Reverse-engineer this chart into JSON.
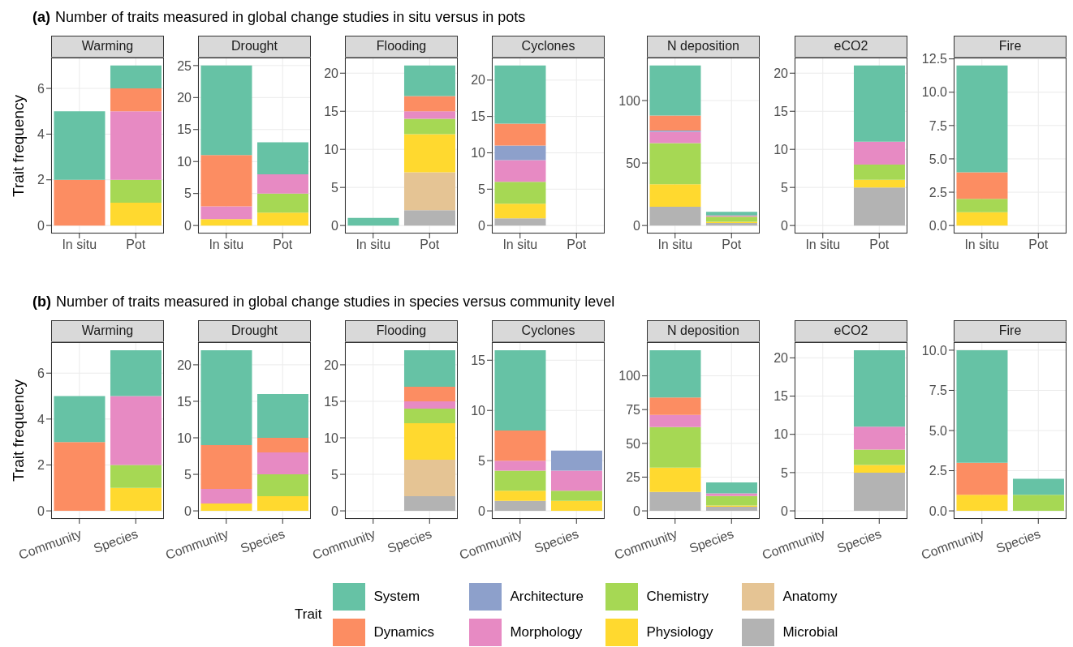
{
  "chart_data": [
    {
      "type": "bar",
      "stacked": true,
      "grid": true,
      "title": "Warming",
      "ylabel": "Trait frequency",
      "annotations": [
        "(a)",
        "Number of traits measured in global change studies in situ versus in pots"
      ],
      "categories": [
        "In situ",
        "Pot"
      ],
      "ylim": [
        -0.35,
        7.35
      ],
      "yticks": [
        0,
        2,
        4,
        6
      ],
      "series": [
        {
          "color": "#b3b3b3",
          "values": [
            null,
            null
          ]
        },
        {
          "color": "#e5c494",
          "values": [
            null,
            null
          ]
        },
        {
          "color": "#ffd92f",
          "values": [
            null,
            1
          ]
        },
        {
          "color": "#a6d854",
          "values": [
            null,
            1
          ]
        },
        {
          "color": "#e78ac3",
          "values": [
            null,
            3
          ]
        },
        {
          "color": "#8da0cb",
          "values": [
            null,
            null
          ]
        },
        {
          "color": "#fc8d62",
          "values": [
            2,
            1
          ]
        },
        {
          "color": "#66c2a5",
          "values": [
            3,
            1
          ]
        }
      ]
    },
    {
      "type": "bar",
      "stacked": true,
      "grid": true,
      "title": "Drought",
      "categories": [
        "In situ",
        "Pot"
      ],
      "ylim": [
        -1.25,
        26.25
      ],
      "yticks": [
        0,
        5,
        10,
        15,
        20,
        25
      ],
      "series": [
        {
          "color": "#b3b3b3",
          "values": [
            null,
            null
          ]
        },
        {
          "color": "#e5c494",
          "values": [
            null,
            null
          ]
        },
        {
          "color": "#ffd92f",
          "values": [
            1,
            2
          ]
        },
        {
          "color": "#a6d854",
          "values": [
            null,
            3
          ]
        },
        {
          "color": "#e78ac3",
          "values": [
            2,
            3
          ]
        },
        {
          "color": "#8da0cb",
          "values": [
            null,
            null
          ]
        },
        {
          "color": "#fc8d62",
          "values": [
            8,
            null
          ]
        },
        {
          "color": "#66c2a5",
          "values": [
            14,
            5
          ]
        }
      ]
    },
    {
      "type": "bar",
      "stacked": true,
      "grid": true,
      "title": "Flooding",
      "categories": [
        "In situ",
        "Pot"
      ],
      "ylim": [
        -1.05,
        22.05
      ],
      "yticks": [
        0,
        5,
        10,
        15,
        20
      ],
      "series": [
        {
          "color": "#b3b3b3",
          "values": [
            null,
            2
          ]
        },
        {
          "color": "#e5c494",
          "values": [
            null,
            5
          ]
        },
        {
          "color": "#ffd92f",
          "values": [
            null,
            5
          ]
        },
        {
          "color": "#a6d854",
          "values": [
            null,
            2
          ]
        },
        {
          "color": "#e78ac3",
          "values": [
            null,
            1
          ]
        },
        {
          "color": "#8da0cb",
          "values": [
            null,
            null
          ]
        },
        {
          "color": "#fc8d62",
          "values": [
            null,
            2
          ]
        },
        {
          "color": "#66c2a5",
          "values": [
            1,
            4
          ]
        }
      ]
    },
    {
      "type": "bar",
      "stacked": true,
      "grid": true,
      "title": "Cyclones",
      "categories": [
        "In situ",
        "Pot"
      ],
      "ylim": [
        -1.1,
        23.1
      ],
      "yticks": [
        0,
        5,
        10,
        15,
        20
      ],
      "series": [
        {
          "color": "#b3b3b3",
          "values": [
            1,
            null
          ]
        },
        {
          "color": "#e5c494",
          "values": [
            null,
            null
          ]
        },
        {
          "color": "#ffd92f",
          "values": [
            2,
            null
          ]
        },
        {
          "color": "#a6d854",
          "values": [
            3,
            null
          ]
        },
        {
          "color": "#e78ac3",
          "values": [
            3,
            null
          ]
        },
        {
          "color": "#8da0cb",
          "values": [
            2,
            null
          ]
        },
        {
          "color": "#fc8d62",
          "values": [
            3,
            null
          ]
        },
        {
          "color": "#66c2a5",
          "values": [
            8,
            null
          ]
        }
      ]
    },
    {
      "type": "bar",
      "stacked": true,
      "grid": true,
      "title": "N deposition",
      "categories": [
        "In situ",
        "Pot"
      ],
      "ylim": [
        -6.4,
        134.4
      ],
      "yticks": [
        0,
        50,
        100
      ],
      "series": [
        {
          "color": "#b3b3b3",
          "values": [
            15,
            2
          ]
        },
        {
          "color": "#e5c494",
          "values": [
            null,
            null
          ]
        },
        {
          "color": "#ffd92f",
          "values": [
            18,
            1
          ]
        },
        {
          "color": "#a6d854",
          "values": [
            33,
            4
          ]
        },
        {
          "color": "#e78ac3",
          "values": [
            9,
            1
          ]
        },
        {
          "color": "#8da0cb",
          "values": [
            1,
            null
          ]
        },
        {
          "color": "#fc8d62",
          "values": [
            12,
            null
          ]
        },
        {
          "color": "#66c2a5",
          "values": [
            40,
            3
          ]
        }
      ]
    },
    {
      "type": "bar",
      "stacked": true,
      "grid": true,
      "title": "eCO2",
      "categories": [
        "In situ",
        "Pot"
      ],
      "ylim": [
        -1.05,
        22.05
      ],
      "yticks": [
        0,
        5,
        10,
        15,
        20
      ],
      "series": [
        {
          "color": "#b3b3b3",
          "values": [
            null,
            5
          ]
        },
        {
          "color": "#e5c494",
          "values": [
            null,
            null
          ]
        },
        {
          "color": "#ffd92f",
          "values": [
            null,
            1
          ]
        },
        {
          "color": "#a6d854",
          "values": [
            null,
            2
          ]
        },
        {
          "color": "#e78ac3",
          "values": [
            null,
            3
          ]
        },
        {
          "color": "#8da0cb",
          "values": [
            null,
            null
          ]
        },
        {
          "color": "#fc8d62",
          "values": [
            null,
            null
          ]
        },
        {
          "color": "#66c2a5",
          "values": [
            null,
            10
          ]
        }
      ]
    },
    {
      "type": "bar",
      "stacked": true,
      "grid": true,
      "title": "Fire",
      "categories": [
        "In situ",
        "Pot"
      ],
      "ylim": [
        -0.6,
        12.6
      ],
      "yticks": [
        {
          "value": 0,
          "label": "0.0"
        },
        2.5,
        {
          "value": 5,
          "label": "5.0"
        },
        7.5,
        {
          "value": 10,
          "label": "10.0"
        },
        12.5
      ],
      "series": [
        {
          "color": "#b3b3b3",
          "values": [
            null,
            null
          ]
        },
        {
          "color": "#e5c494",
          "values": [
            null,
            null
          ]
        },
        {
          "color": "#ffd92f",
          "values": [
            1,
            null
          ]
        },
        {
          "color": "#a6d854",
          "values": [
            1,
            null
          ]
        },
        {
          "color": "#e78ac3",
          "values": [
            null,
            null
          ]
        },
        {
          "color": "#8da0cb",
          "values": [
            null,
            null
          ]
        },
        {
          "color": "#fc8d62",
          "values": [
            2,
            null
          ]
        },
        {
          "color": "#66c2a5",
          "values": [
            8,
            null
          ]
        }
      ]
    },
    {
      "type": "bar",
      "stacked": true,
      "grid": true,
      "title": "Warming",
      "ylabel": "Trait frequency",
      "annotations": [
        "(b)",
        "Number of traits measured in global change studies in species versus community level"
      ],
      "categories": [
        "Community",
        "Species"
      ],
      "ylim": [
        -0.35,
        7.35
      ],
      "yticks": [
        0,
        2,
        4,
        6
      ],
      "series": [
        {
          "color": "#b3b3b3",
          "values": [
            null,
            null
          ]
        },
        {
          "color": "#e5c494",
          "values": [
            null,
            null
          ]
        },
        {
          "color": "#ffd92f",
          "values": [
            null,
            1
          ]
        },
        {
          "color": "#a6d854",
          "values": [
            null,
            1
          ]
        },
        {
          "color": "#e78ac3",
          "values": [
            null,
            3
          ]
        },
        {
          "color": "#8da0cb",
          "values": [
            null,
            null
          ]
        },
        {
          "color": "#fc8d62",
          "values": [
            3,
            null
          ]
        },
        {
          "color": "#66c2a5",
          "values": [
            2,
            2
          ]
        }
      ]
    },
    {
      "type": "bar",
      "stacked": true,
      "grid": true,
      "title": "Drought",
      "categories": [
        "Community",
        "Species"
      ],
      "ylim": [
        -1.1,
        23.1
      ],
      "yticks": [
        0,
        5,
        10,
        15,
        20
      ],
      "series": [
        {
          "color": "#b3b3b3",
          "values": [
            null,
            null
          ]
        },
        {
          "color": "#e5c494",
          "values": [
            null,
            null
          ]
        },
        {
          "color": "#ffd92f",
          "values": [
            1,
            2
          ]
        },
        {
          "color": "#a6d854",
          "values": [
            null,
            3
          ]
        },
        {
          "color": "#e78ac3",
          "values": [
            2,
            3
          ]
        },
        {
          "color": "#8da0cb",
          "values": [
            null,
            null
          ]
        },
        {
          "color": "#fc8d62",
          "values": [
            6,
            2
          ]
        },
        {
          "color": "#66c2a5",
          "values": [
            13,
            6
          ]
        }
      ]
    },
    {
      "type": "bar",
      "stacked": true,
      "grid": true,
      "title": "Flooding",
      "categories": [
        "Community",
        "Species"
      ],
      "ylim": [
        -1.1,
        23.1
      ],
      "yticks": [
        0,
        5,
        10,
        15,
        20
      ],
      "series": [
        {
          "color": "#b3b3b3",
          "values": [
            null,
            2
          ]
        },
        {
          "color": "#e5c494",
          "values": [
            null,
            5
          ]
        },
        {
          "color": "#ffd92f",
          "values": [
            null,
            5
          ]
        },
        {
          "color": "#a6d854",
          "values": [
            null,
            2
          ]
        },
        {
          "color": "#e78ac3",
          "values": [
            null,
            1
          ]
        },
        {
          "color": "#8da0cb",
          "values": [
            null,
            null
          ]
        },
        {
          "color": "#fc8d62",
          "values": [
            null,
            2
          ]
        },
        {
          "color": "#66c2a5",
          "values": [
            null,
            5
          ]
        }
      ]
    },
    {
      "type": "bar",
      "stacked": true,
      "grid": true,
      "title": "Cyclones",
      "categories": [
        "Community",
        "Species"
      ],
      "ylim": [
        -0.8,
        16.8
      ],
      "yticks": [
        0,
        5,
        10,
        15
      ],
      "series": [
        {
          "color": "#b3b3b3",
          "values": [
            1,
            null
          ]
        },
        {
          "color": "#e5c494",
          "values": [
            null,
            null
          ]
        },
        {
          "color": "#ffd92f",
          "values": [
            1,
            1
          ]
        },
        {
          "color": "#a6d854",
          "values": [
            2,
            1
          ]
        },
        {
          "color": "#e78ac3",
          "values": [
            1,
            2
          ]
        },
        {
          "color": "#8da0cb",
          "values": [
            null,
            2
          ]
        },
        {
          "color": "#fc8d62",
          "values": [
            3,
            null
          ]
        },
        {
          "color": "#66c2a5",
          "values": [
            8,
            null
          ]
        }
      ]
    },
    {
      "type": "bar",
      "stacked": true,
      "grid": true,
      "title": "N deposition",
      "categories": [
        "Community",
        "Species"
      ],
      "ylim": [
        -5.95,
        124.95
      ],
      "yticks": [
        0,
        25,
        50,
        75,
        100
      ],
      "series": [
        {
          "color": "#b3b3b3",
          "values": [
            14,
            3
          ]
        },
        {
          "color": "#e5c494",
          "values": [
            null,
            null
          ]
        },
        {
          "color": "#ffd92f",
          "values": [
            18,
            1
          ]
        },
        {
          "color": "#a6d854",
          "values": [
            30,
            7
          ]
        },
        {
          "color": "#e78ac3",
          "values": [
            9,
            2
          ]
        },
        {
          "color": "#8da0cb",
          "values": [
            null,
            null
          ]
        },
        {
          "color": "#fc8d62",
          "values": [
            13,
            null
          ]
        },
        {
          "color": "#66c2a5",
          "values": [
            35,
            8
          ]
        }
      ]
    },
    {
      "type": "bar",
      "stacked": true,
      "grid": true,
      "title": "eCO2",
      "categories": [
        "Community",
        "Species"
      ],
      "ylim": [
        -1.05,
        22.05
      ],
      "yticks": [
        0,
        5,
        10,
        15,
        20
      ],
      "series": [
        {
          "color": "#b3b3b3",
          "values": [
            null,
            5
          ]
        },
        {
          "color": "#e5c494",
          "values": [
            null,
            null
          ]
        },
        {
          "color": "#ffd92f",
          "values": [
            null,
            1
          ]
        },
        {
          "color": "#a6d854",
          "values": [
            null,
            2
          ]
        },
        {
          "color": "#e78ac3",
          "values": [
            null,
            3
          ]
        },
        {
          "color": "#8da0cb",
          "values": [
            null,
            null
          ]
        },
        {
          "color": "#fc8d62",
          "values": [
            null,
            null
          ]
        },
        {
          "color": "#66c2a5",
          "values": [
            null,
            10
          ]
        }
      ]
    },
    {
      "type": "bar",
      "stacked": true,
      "grid": true,
      "title": "Fire",
      "legend": "bottom",
      "legend_title": "Trait",
      "categories": [
        "Community",
        "Species"
      ],
      "ylim": [
        -0.5,
        10.5
      ],
      "yticks": [
        {
          "value": 0,
          "label": "0.0"
        },
        2.5,
        {
          "value": 5,
          "label": "5.0"
        },
        7.5,
        {
          "value": 10,
          "label": "10.0"
        }
      ],
      "series": [
        {
          "name": "Microbial",
          "color": "#b3b3b3",
          "values": [
            null,
            null
          ]
        },
        {
          "name": "Anatomy",
          "color": "#e5c494",
          "values": [
            null,
            null
          ]
        },
        {
          "name": "Physiology",
          "color": "#ffd92f",
          "values": [
            1,
            null
          ]
        },
        {
          "name": "Chemistry",
          "color": "#a6d854",
          "values": [
            null,
            1
          ]
        },
        {
          "name": "Morphology",
          "color": "#e78ac3",
          "values": [
            null,
            null
          ]
        },
        {
          "name": "Architecture",
          "color": "#8da0cb",
          "values": [
            null,
            null
          ]
        },
        {
          "name": "Dynamics",
          "color": "#fc8d62",
          "values": [
            2,
            null
          ]
        },
        {
          "name": "System",
          "color": "#66c2a5",
          "values": [
            7,
            1
          ]
        }
      ]
    }
  ]
}
